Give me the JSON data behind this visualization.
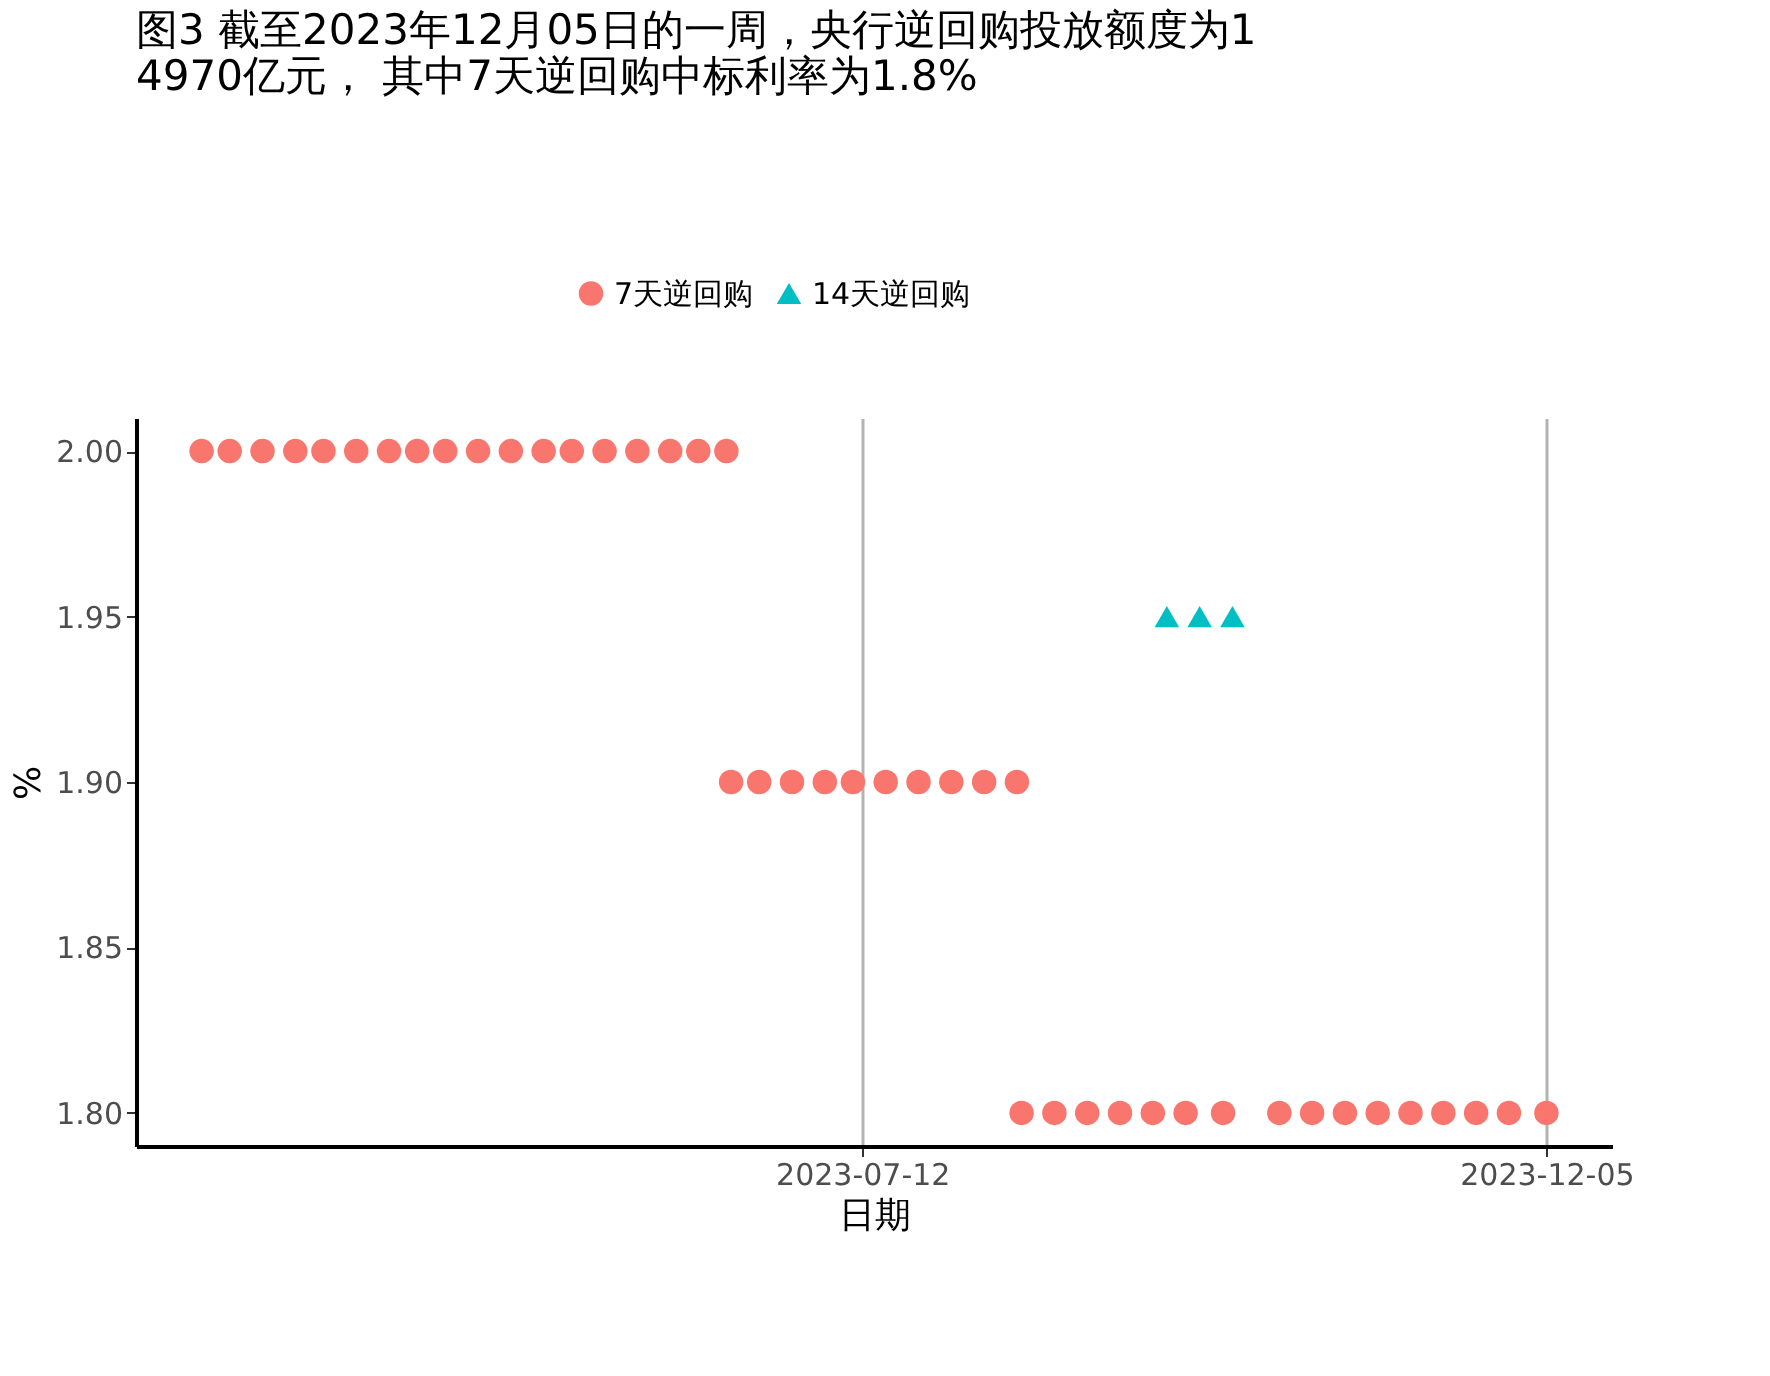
{
  "chart_data": {
    "type": "scatter",
    "title": "图3  截至2023年12月05日的一周，央行逆回购投放额度为14970亿元， 其中7天逆回购中标利率为1.8%",
    "xlabel": "日期",
    "ylabel": "%",
    "series": [
      {
        "name": "7天逆回购",
        "color": "#f8766d",
        "marker": "circle",
        "x": [
          "2023-02-21",
          "2023-02-27",
          "2023-03-06",
          "2023-03-13",
          "2023-03-19",
          "2023-03-26",
          "2023-04-02",
          "2023-04-08",
          "2023-04-14",
          "2023-04-21",
          "2023-04-28",
          "2023-05-05",
          "2023-05-11",
          "2023-05-18",
          "2023-05-25",
          "2023-06-01",
          "2023-06-07",
          "2023-06-13",
          "2023-06-14",
          "2023-06-20",
          "2023-06-27",
          "2023-07-04",
          "2023-07-10",
          "2023-07-17",
          "2023-07-24",
          "2023-07-31",
          "2023-08-07",
          "2023-08-14",
          "2023-08-15",
          "2023-08-22",
          "2023-08-29",
          "2023-09-05",
          "2023-09-12",
          "2023-09-19",
          "2023-09-27",
          "2023-10-09",
          "2023-10-16",
          "2023-10-23",
          "2023-10-30",
          "2023-11-06",
          "2023-11-13",
          "2023-11-20",
          "2023-11-27",
          "2023-12-05"
        ],
        "values": [
          2.0,
          2.0,
          2.0,
          2.0,
          2.0,
          2.0,
          2.0,
          2.0,
          2.0,
          2.0,
          2.0,
          2.0,
          2.0,
          2.0,
          2.0,
          2.0,
          2.0,
          2.0,
          1.9,
          1.9,
          1.9,
          1.9,
          1.9,
          1.9,
          1.9,
          1.9,
          1.9,
          1.9,
          1.8,
          1.8,
          1.8,
          1.8,
          1.8,
          1.8,
          1.8,
          1.8,
          1.8,
          1.8,
          1.8,
          1.8,
          1.8,
          1.8,
          1.8,
          1.8
        ]
      },
      {
        "name": "14天逆回购",
        "color": "#00bfc4",
        "marker": "triangle",
        "x": [
          "2023-09-15",
          "2023-09-22",
          "2023-09-29"
        ],
        "values": [
          1.95,
          1.95,
          1.95
        ]
      }
    ],
    "xlim": [
      "2023-02-07",
      "2023-12-19"
    ],
    "xticks": [
      "2023-07-12",
      "2023-12-05"
    ],
    "ylim": [
      1.79,
      2.01
    ],
    "yticks": [
      {
        "value": 1.8,
        "label": "1.80"
      },
      1.85,
      {
        "value": 1.9,
        "label": "1.90"
      },
      1.95,
      {
        "value": 2.0,
        "label": "2.00"
      }
    ],
    "grid": "x",
    "legend": "top"
  }
}
